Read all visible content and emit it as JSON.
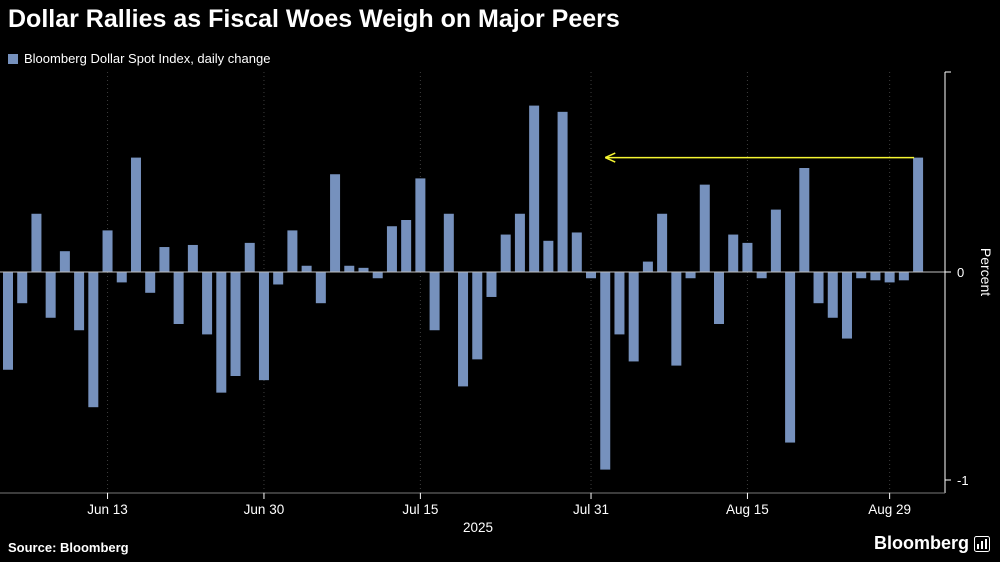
{
  "title": "Dollar Rallies as Fiscal Woes Weigh on Major Peers",
  "legend": {
    "label": "Bloomberg Dollar Spot Index, daily change",
    "swatch_color": "#7691bd"
  },
  "chart_data": {
    "type": "bar",
    "series_name": "Bloomberg Dollar Spot Index, daily change",
    "unit": "percent",
    "values": [
      -0.47,
      -0.15,
      0.28,
      -0.22,
      0.1,
      -0.28,
      -0.65,
      0.2,
      -0.05,
      0.55,
      -0.1,
      0.12,
      -0.25,
      0.13,
      -0.3,
      -0.58,
      -0.5,
      0.14,
      -0.52,
      -0.06,
      0.2,
      0.03,
      -0.15,
      0.47,
      0.03,
      0.02,
      -0.03,
      0.22,
      0.25,
      0.45,
      -0.28,
      0.28,
      -0.55,
      -0.42,
      -0.12,
      0.18,
      0.28,
      0.8,
      0.15,
      0.77,
      0.19,
      -0.03,
      -0.95,
      -0.3,
      -0.43,
      0.05,
      0.28,
      -0.45,
      -0.03,
      0.42,
      -0.25,
      0.18,
      0.14,
      -0.03,
      0.3,
      -0.82,
      0.5,
      -0.15,
      -0.22,
      -0.32,
      -0.03,
      -0.04,
      -0.05,
      -0.04,
      0.55
    ],
    "x_tick_labels": [
      "Jun 13",
      "Jun 30",
      "Jul 15",
      "Jul 31",
      "Aug 15",
      "Aug 29"
    ],
    "x_tick_indices": [
      7,
      18,
      29,
      41,
      52,
      62
    ],
    "x_axis_year_label": "2025",
    "y_axis_label": "Percent",
    "y_ticks": [
      0,
      -1
    ],
    "ylim": [
      -1.07,
      0.95
    ],
    "grid": "vertical-dotted-at-ticks",
    "legend_position": "top-left",
    "bar_color": "#7691bd",
    "annotation_arrow": {
      "description": "yellow left-pointing arrow from top of last bar",
      "color": "#f6f632",
      "y_value": 0.55,
      "from_index": 64,
      "to_index": 42,
      "direction": "left"
    }
  },
  "footer": {
    "source": "Source: Bloomberg",
    "brand": "Bloomberg"
  }
}
